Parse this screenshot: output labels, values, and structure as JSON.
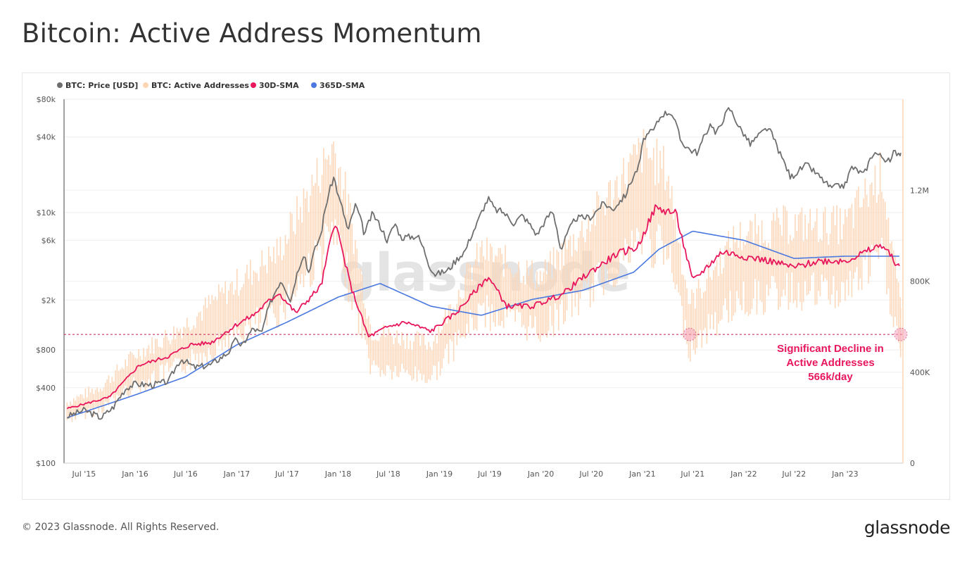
{
  "title": "Bitcoin: Active Address Momentum",
  "footer": "© 2023 Glassnode. All Rights Reserved.",
  "brand": "glassnode",
  "watermark": "glassnode",
  "colors": {
    "price": "#6e6e6e",
    "active": "#fcd5b5",
    "sma30": "#e8175d",
    "sma365": "#4a78e0",
    "threshold": "#c0184f"
  },
  "chart_data": {
    "type": "line",
    "x_ticks": [
      "Jul '15",
      "Jan '16",
      "Jul '16",
      "Jan '17",
      "Jul '17",
      "Jan '18",
      "Jul '18",
      "Jan '19",
      "Jul '19",
      "Jan '20",
      "Jul '20",
      "Jan '21",
      "Jul '21",
      "Jan '22",
      "Jul '22",
      "Jan '23"
    ],
    "y_left_ticks": [
      "$80k",
      "$40k",
      "$10k",
      "$6k",
      "$2k",
      "$800",
      "$400",
      "$100"
    ],
    "y_right_ticks": [
      "1.2M",
      "800K",
      "400K",
      "0"
    ],
    "y_left_scale": "log",
    "y_left_range": [
      100,
      80000
    ],
    "y_right_range": [
      0,
      1600000
    ],
    "grid": true,
    "legend_position": "top-left",
    "legend": [
      "BTC: Price [USD]",
      "BTC: Active Addresses",
      "30D-SMA",
      "365D-SMA"
    ],
    "series": [
      {
        "name": "BTC: Price [USD]",
        "axis": "left",
        "points": [
          [
            "2015-05-01",
            235
          ],
          [
            "2015-07-01",
            265
          ],
          [
            "2015-09-01",
            230
          ],
          [
            "2015-10-15",
            280
          ],
          [
            "2015-12-01",
            400
          ],
          [
            "2016-01-01",
            430
          ],
          [
            "2016-03-01",
            420
          ],
          [
            "2016-05-01",
            450
          ],
          [
            "2016-06-15",
            680
          ],
          [
            "2016-08-01",
            580
          ],
          [
            "2016-10-01",
            610
          ],
          [
            "2016-12-01",
            760
          ],
          [
            "2017-01-03",
            1000
          ],
          [
            "2017-01-15",
            820
          ],
          [
            "2017-03-01",
            1190
          ],
          [
            "2017-04-01",
            1080
          ],
          [
            "2017-06-10",
            2900
          ],
          [
            "2017-07-15",
            1950
          ],
          [
            "2017-09-01",
            4800
          ],
          [
            "2017-09-15",
            3200
          ],
          [
            "2017-11-01",
            6700
          ],
          [
            "2017-12-17",
            19200
          ],
          [
            "2018-01-01",
            13500
          ],
          [
            "2018-02-06",
            6900
          ],
          [
            "2018-03-05",
            11500
          ],
          [
            "2018-04-06",
            6600
          ],
          [
            "2018-05-05",
            9800
          ],
          [
            "2018-06-28",
            5900
          ],
          [
            "2018-07-25",
            8200
          ],
          [
            "2018-08-15",
            6300
          ],
          [
            "2018-10-15",
            6500
          ],
          [
            "2018-11-25",
            3800
          ],
          [
            "2018-12-15",
            3200
          ],
          [
            "2019-02-01",
            3450
          ],
          [
            "2019-04-05",
            5000
          ],
          [
            "2019-05-15",
            8000
          ],
          [
            "2019-06-26",
            12900
          ],
          [
            "2019-07-20",
            10500
          ],
          [
            "2019-08-15",
            10200
          ],
          [
            "2019-09-26",
            8200
          ],
          [
            "2019-10-26",
            9500
          ],
          [
            "2019-12-18",
            6600
          ],
          [
            "2020-02-12",
            10300
          ],
          [
            "2020-03-13",
            4900
          ],
          [
            "2020-05-05",
            9000
          ],
          [
            "2020-07-01",
            9200
          ],
          [
            "2020-08-15",
            11900
          ],
          [
            "2020-09-15",
            10500
          ],
          [
            "2020-11-01",
            13700
          ],
          [
            "2020-12-20",
            23500
          ],
          [
            "2021-01-08",
            40000
          ],
          [
            "2021-02-10",
            45000
          ],
          [
            "2021-03-13",
            61000
          ],
          [
            "2021-04-14",
            63500
          ],
          [
            "2021-05-19",
            37000
          ],
          [
            "2021-06-22",
            31500
          ],
          [
            "2021-07-20",
            30000
          ],
          [
            "2021-09-06",
            52000
          ],
          [
            "2021-09-22",
            41000
          ],
          [
            "2021-11-10",
            68000
          ],
          [
            "2021-12-15",
            48000
          ],
          [
            "2022-01-24",
            35000
          ],
          [
            "2022-03-29",
            47500
          ],
          [
            "2022-05-12",
            29000
          ],
          [
            "2022-06-18",
            19000
          ],
          [
            "2022-08-15",
            24000
          ],
          [
            "2022-10-01",
            19200
          ],
          [
            "2022-11-09",
            15700
          ],
          [
            "2023-01-01",
            16600
          ],
          [
            "2023-01-25",
            23000
          ],
          [
            "2023-03-10",
            20000
          ],
          [
            "2023-04-14",
            30400
          ],
          [
            "2023-06-15",
            25000
          ],
          [
            "2023-06-25",
            30500
          ],
          [
            "2023-07-20",
            29800
          ]
        ]
      },
      {
        "name": "BTC: Active Addresses",
        "axis": "right",
        "points": [
          [
            "2015-05-01",
            230000
          ],
          [
            "2015-09-01",
            290000
          ],
          [
            "2016-01-01",
            410000
          ],
          [
            "2016-06-01",
            500000
          ],
          [
            "2017-01-01",
            680000
          ],
          [
            "2017-06-01",
            800000
          ],
          [
            "2017-12-15",
            1200000
          ],
          [
            "2018-02-01",
            1000000
          ],
          [
            "2018-05-01",
            500000
          ],
          [
            "2018-12-01",
            450000
          ],
          [
            "2019-06-01",
            800000
          ],
          [
            "2020-01-01",
            700000
          ],
          [
            "2020-06-01",
            880000
          ],
          [
            "2021-01-01",
            1180000
          ],
          [
            "2021-04-01",
            1100000
          ],
          [
            "2021-06-20",
            600000
          ],
          [
            "2021-12-01",
            850000
          ],
          [
            "2022-06-01",
            900000
          ],
          [
            "2023-01-01",
            900000
          ],
          [
            "2023-05-15",
            1100000
          ],
          [
            "2023-07-20",
            566000
          ]
        ]
      },
      {
        "name": "30D-SMA",
        "axis": "right",
        "points": [
          [
            "2015-05-01",
            240000
          ],
          [
            "2015-10-01",
            290000
          ],
          [
            "2016-01-15",
            430000
          ],
          [
            "2016-05-01",
            470000
          ],
          [
            "2016-07-15",
            520000
          ],
          [
            "2016-10-01",
            530000
          ],
          [
            "2017-01-01",
            610000
          ],
          [
            "2017-03-01",
            650000
          ],
          [
            "2017-06-01",
            750000
          ],
          [
            "2017-08-01",
            660000
          ],
          [
            "2017-11-01",
            780000
          ],
          [
            "2017-12-20",
            1070000
          ],
          [
            "2018-02-15",
            780000
          ],
          [
            "2018-04-20",
            555000
          ],
          [
            "2018-07-01",
            600000
          ],
          [
            "2018-09-01",
            620000
          ],
          [
            "2018-12-01",
            580000
          ],
          [
            "2019-03-01",
            660000
          ],
          [
            "2019-06-26",
            820000
          ],
          [
            "2019-09-01",
            690000
          ],
          [
            "2019-12-01",
            690000
          ],
          [
            "2020-03-15",
            740000
          ],
          [
            "2020-06-15",
            830000
          ],
          [
            "2020-10-01",
            920000
          ],
          [
            "2020-12-15",
            950000
          ],
          [
            "2021-02-15",
            1120000
          ],
          [
            "2021-05-01",
            1100000
          ],
          [
            "2021-07-01",
            800000
          ],
          [
            "2021-10-15",
            930000
          ],
          [
            "2022-01-01",
            910000
          ],
          [
            "2022-04-01",
            890000
          ],
          [
            "2022-07-01",
            860000
          ],
          [
            "2022-10-01",
            890000
          ],
          [
            "2023-01-01",
            890000
          ],
          [
            "2023-03-01",
            920000
          ],
          [
            "2023-05-15",
            960000
          ],
          [
            "2023-07-15",
            860000
          ]
        ]
      },
      {
        "name": "365D-SMA",
        "axis": "right",
        "points": [
          [
            "2015-05-01",
            200000
          ],
          [
            "2016-01-01",
            300000
          ],
          [
            "2016-07-01",
            380000
          ],
          [
            "2017-01-01",
            520000
          ],
          [
            "2017-07-01",
            620000
          ],
          [
            "2018-01-01",
            730000
          ],
          [
            "2018-06-01",
            790000
          ],
          [
            "2018-12-01",
            690000
          ],
          [
            "2019-06-01",
            650000
          ],
          [
            "2019-12-01",
            720000
          ],
          [
            "2020-06-01",
            760000
          ],
          [
            "2020-12-01",
            840000
          ],
          [
            "2021-03-01",
            940000
          ],
          [
            "2021-07-01",
            1020000
          ],
          [
            "2022-01-01",
            980000
          ],
          [
            "2022-07-01",
            900000
          ],
          [
            "2023-01-01",
            910000
          ],
          [
            "2023-07-15",
            910000
          ]
        ]
      }
    ],
    "threshold": {
      "axis": "right",
      "value": 566000
    },
    "annotation": [
      "Significant Decline in",
      "Active Addresses",
      "566k/day"
    ]
  }
}
